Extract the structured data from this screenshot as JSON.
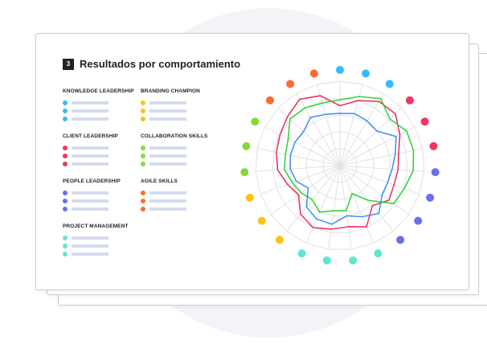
{
  "section": {
    "number": "3",
    "title": "Resultados por comportamiento"
  },
  "legend": [
    {
      "label": "KNOWLEDGE LEADERSHIP",
      "color": "#35bdf5",
      "col": 0,
      "row": 0
    },
    {
      "label": "BRANDING CHAMPION",
      "color": "#fbc315",
      "col": 1,
      "row": 0
    },
    {
      "label": "CLIENT LEADERSHIP",
      "color": "#f03762",
      "col": 0,
      "row": 1
    },
    {
      "label": "COLLABORATION SKILLS",
      "color": "#86d93a",
      "col": 1,
      "row": 1
    },
    {
      "label": "PEOPLE LEADERSHIP",
      "color": "#6670ee",
      "col": 0,
      "row": 2
    },
    {
      "label": "AGILE SKILLS",
      "color": "#fb6b2f",
      "col": 1,
      "row": 2
    },
    {
      "label": "PROJECT MANAGEMENT",
      "color": "#5ee6cf",
      "col": 0,
      "row": 3
    }
  ],
  "chart_data": {
    "type": "radar",
    "axes_count": 23,
    "rings": 5,
    "range": [
      0,
      1
    ],
    "axis_colors": [
      "#35bdf5",
      "#35bdf5",
      "#35bdf5",
      "#f03762",
      "#f03762",
      "#f03762",
      "#6670ee",
      "#6670ee",
      "#6670ee",
      "#6670ee",
      "#5ee6cf",
      "#5ee6cf",
      "#5ee6cf",
      "#5ee6cf",
      "#fbc315",
      "#fbc315",
      "#fbc315",
      "#86d93a",
      "#86d93a",
      "#86d93a",
      "#fb6b2f",
      "#fb6b2f",
      "#fb6b2f"
    ],
    "series": [
      {
        "name": "red",
        "color": "#f0285a",
        "values": [
          0.71,
          0.8,
          0.89,
          0.9,
          0.8,
          0.71,
          0.69,
          0.68,
          0.71,
          0.61,
          0.79,
          0.73,
          0.76,
          0.8,
          0.74,
          0.6,
          0.66,
          0.74,
          0.77,
          0.8,
          0.85,
          0.92,
          0.86
        ]
      },
      {
        "name": "green",
        "color": "#2ad12f",
        "values": [
          0.78,
          0.85,
          0.93,
          0.81,
          0.89,
          0.89,
          0.87,
          0.81,
          0.78,
          0.53,
          0.36,
          0.54,
          0.54,
          0.6,
          0.52,
          0.56,
          0.6,
          0.66,
          0.66,
          0.69,
          0.81,
          0.8,
          0.77
        ]
      },
      {
        "name": "blue",
        "color": "#3b8ef0",
        "values": [
          0.62,
          0.64,
          0.62,
          0.6,
          0.75,
          0.67,
          0.62,
          0.6,
          0.61,
          0.73,
          0.66,
          0.6,
          0.7,
          0.69,
          0.63,
          0.46,
          0.55,
          0.59,
          0.6,
          0.6,
          0.59,
          0.67,
          0.63
        ]
      }
    ]
  }
}
